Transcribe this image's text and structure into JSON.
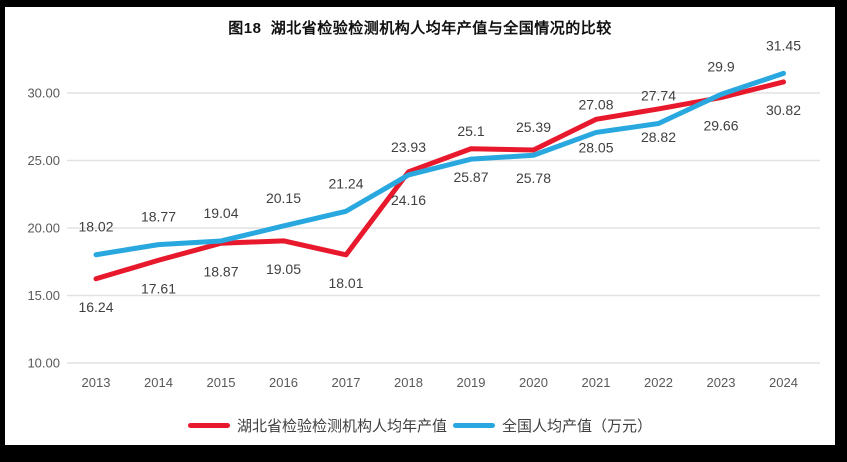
{
  "chart_data": {
    "type": "line",
    "title": "图18  湖北省检验检测机构人均年产值与全国情况的比较",
    "categories": [
      "2013",
      "2014",
      "2015",
      "2016",
      "2017",
      "2018",
      "2019",
      "2020",
      "2021",
      "2022",
      "2023",
      "2024"
    ],
    "series": [
      {
        "name": "湖北省检验检测机构人均年产值",
        "color": "#e8192d",
        "values": [
          16.24,
          17.61,
          18.87,
          19.05,
          18.01,
          24.16,
          25.87,
          25.78,
          28.05,
          28.82,
          29.66,
          30.82
        ],
        "data_labels": [
          "16.24",
          "17.61",
          "18.87",
          "19.05",
          "18.01",
          "24.16",
          "25.87",
          "25.78",
          "28.05",
          "28.82",
          "29.66",
          "30.82"
        ],
        "label_position": "below"
      },
      {
        "name": "全国人均产值（万元）",
        "color": "#29a8e0",
        "values": [
          18.02,
          18.77,
          19.04,
          20.15,
          21.24,
          23.93,
          25.1,
          25.39,
          27.08,
          27.74,
          29.9,
          31.45
        ],
        "data_labels": [
          "18.02",
          "18.77",
          "19.04",
          "20.15",
          "21.24",
          "23.93",
          "25.1",
          "25.39",
          "27.08",
          "27.74",
          "29.9",
          "31.45"
        ],
        "label_position": "above"
      }
    ],
    "y_axis": {
      "min": 10,
      "max": 32.5,
      "ticks": [
        {
          "value": 10,
          "label": "10.00"
        },
        {
          "value": 15,
          "label": "15.00"
        },
        {
          "value": 20,
          "label": "20.00"
        },
        {
          "value": 25,
          "label": "25.00"
        },
        {
          "value": 30,
          "label": "30.00"
        }
      ]
    },
    "xlabel": "",
    "ylabel": "",
    "grid": "horizontal",
    "legend_position": "bottom-center",
    "style": {
      "background": "#ffffff",
      "frame_color": "#000000",
      "gridline_color": "#e2e2e2",
      "axis_label_color": "#595959",
      "data_label_color": "#404040",
      "title_color": "#111111"
    }
  }
}
